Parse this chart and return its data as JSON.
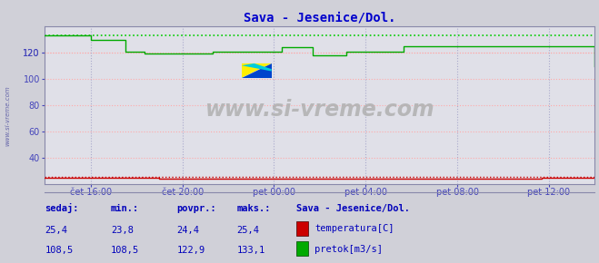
{
  "title": "Sava - Jesenice/Dol.",
  "bg_color": "#d0d0d8",
  "plot_bg_color": "#e0e0e8",
  "grid_color_h": "#ffaaaa",
  "grid_color_v": "#aaaacc",
  "spine_color": "#8888aa",
  "xlabel_color": "#4444bb",
  "title_color": "#0000cc",
  "watermark": "www.si-vreme.com",
  "x_ticks_labels": [
    "čet 16:00",
    "čet 20:00",
    "pet 00:00",
    "pet 04:00",
    "pet 08:00",
    "pet 12:00"
  ],
  "ylim": [
    20,
    140
  ],
  "yticks": [
    40,
    60,
    80,
    100,
    120
  ],
  "xlim": [
    0,
    288
  ],
  "x_tick_positions": [
    24,
    72,
    120,
    168,
    216,
    264
  ],
  "temp_color": "#cc0000",
  "flow_color": "#00aa00",
  "flow_dotted_color": "#00cc00",
  "temp_dotted_color": "#cc0000",
  "sedaj_label": "sedaj:",
  "min_label": "min.:",
  "povpr_label": "povpr.:",
  "maks_label": "maks.:",
  "station_label": "Sava - Jesenice/Dol.",
  "temp_row": [
    "25,4",
    "23,8",
    "24,4",
    "25,4"
  ],
  "flow_row": [
    "108,5",
    "108,5",
    "122,9",
    "133,1"
  ],
  "temp_legend": "temperatura[C]",
  "flow_legend": "pretok[m3/s]",
  "label_color": "#0000bb",
  "temp_value": 25.4,
  "flow_max": 133.1,
  "flow_values_x": [
    0,
    2,
    4,
    6,
    8,
    10,
    12,
    14,
    16,
    18,
    20,
    22,
    24,
    26,
    28,
    30,
    32,
    34,
    36,
    38,
    40,
    42,
    44,
    46,
    48,
    50,
    52,
    54,
    56,
    58,
    60,
    62,
    64,
    66,
    68,
    70,
    72,
    74,
    76,
    78,
    80,
    82,
    84,
    86,
    88,
    90,
    92,
    94,
    96,
    98,
    100,
    102,
    104,
    106,
    108,
    110,
    112,
    114,
    116,
    118,
    120,
    122,
    124,
    126,
    128,
    130,
    132,
    134,
    136,
    138,
    140,
    142,
    144,
    146,
    148,
    150,
    152,
    154,
    156,
    158,
    160,
    162,
    164,
    166,
    168,
    170,
    172,
    174,
    176,
    178,
    180,
    182,
    184,
    186,
    188,
    190,
    192,
    194,
    196,
    198,
    200,
    202,
    204,
    206,
    208,
    210,
    212,
    214,
    216,
    218,
    220,
    222,
    224,
    226,
    228,
    230,
    232,
    234,
    236,
    238,
    240,
    242,
    244,
    246,
    248,
    250,
    252,
    254,
    256,
    258,
    260,
    262,
    264,
    266,
    268,
    270,
    272,
    274,
    276,
    278,
    280,
    282,
    284,
    286,
    288
  ],
  "flow_values_y": [
    133,
    133,
    133,
    133,
    133,
    133,
    133,
    133,
    133,
    133,
    133,
    133,
    130,
    130,
    130,
    130,
    130,
    130,
    130,
    130,
    130,
    121,
    121,
    121,
    121,
    121,
    119,
    119,
    119,
    119,
    119,
    119,
    119,
    119,
    119,
    119,
    119,
    119,
    119,
    119,
    119,
    119,
    119,
    119,
    121,
    121,
    121,
    121,
    121,
    121,
    121,
    121,
    121,
    121,
    121,
    121,
    121,
    121,
    121,
    121,
    121,
    121,
    124,
    124,
    124,
    124,
    124,
    124,
    124,
    124,
    118,
    118,
    118,
    118,
    118,
    118,
    118,
    118,
    118,
    121,
    121,
    121,
    121,
    121,
    121,
    121,
    121,
    121,
    121,
    121,
    121,
    121,
    121,
    121,
    125,
    125,
    125,
    125,
    125,
    125,
    125,
    125,
    125,
    125,
    125,
    125,
    125,
    125,
    125,
    125,
    125,
    125,
    125,
    125,
    125,
    125,
    125,
    125,
    125,
    125,
    125,
    125,
    125,
    125,
    125,
    125,
    125,
    125,
    125,
    125,
    125,
    125,
    125,
    125,
    125,
    125,
    125,
    125,
    125,
    125,
    125,
    125,
    125,
    125,
    110
  ],
  "temp_values_x": [
    0,
    2,
    4,
    6,
    8,
    10,
    12,
    14,
    16,
    18,
    20,
    22,
    24,
    26,
    28,
    30,
    32,
    34,
    36,
    38,
    40,
    42,
    44,
    46,
    48,
    50,
    52,
    54,
    56,
    58,
    60,
    62,
    64,
    66,
    68,
    70,
    72,
    74,
    76,
    78,
    80,
    82,
    84,
    86,
    88,
    90,
    92,
    94,
    96,
    98,
    100,
    102,
    104,
    106,
    108,
    110,
    112,
    114,
    116,
    118,
    120,
    122,
    124,
    126,
    128,
    130,
    132,
    134,
    136,
    138,
    140,
    142,
    144,
    146,
    148,
    150,
    152,
    154,
    156,
    158,
    160,
    162,
    164,
    166,
    168,
    170,
    172,
    174,
    176,
    178,
    180,
    182,
    184,
    186,
    188,
    190,
    192,
    194,
    196,
    198,
    200,
    202,
    204,
    206,
    208,
    210,
    212,
    214,
    216,
    218,
    220,
    222,
    224,
    226,
    228,
    230,
    232,
    234,
    236,
    238,
    240,
    242,
    244,
    246,
    248,
    250,
    252,
    254,
    256,
    258,
    260,
    262,
    264,
    266,
    268,
    270,
    272,
    274,
    276,
    278,
    280,
    282,
    284,
    286,
    288
  ],
  "temp_values_y": [
    25,
    25,
    25,
    25,
    25,
    25,
    25,
    25,
    25,
    25,
    25,
    25,
    25,
    25,
    25,
    25,
    25,
    25,
    25,
    25,
    25,
    25,
    25,
    25,
    25,
    25,
    25,
    25,
    25,
    25,
    24,
    24,
    24,
    24,
    24,
    24,
    24,
    24,
    24,
    24,
    24,
    24,
    24,
    24,
    24,
    24,
    24,
    24,
    24,
    24,
    24,
    24,
    24,
    24,
    24,
    24,
    24,
    24,
    24,
    24,
    24,
    24,
    24,
    24,
    24,
    24,
    24,
    24,
    24,
    24,
    24,
    24,
    24,
    24,
    24,
    24,
    24,
    24,
    24,
    24,
    24,
    24,
    24,
    24,
    24,
    24,
    24,
    24,
    24,
    24,
    24,
    24,
    24,
    24,
    24,
    24,
    24,
    24,
    24,
    24,
    24,
    24,
    24,
    24,
    24,
    24,
    24,
    24,
    24,
    24,
    24,
    24,
    24,
    24,
    24,
    24,
    24,
    24,
    24,
    24,
    24,
    24,
    24,
    24,
    24,
    24,
    24,
    24,
    24,
    24,
    25,
    25,
    25,
    25,
    25,
    25,
    25,
    25,
    25,
    25,
    25,
    25,
    25,
    25,
    25
  ]
}
